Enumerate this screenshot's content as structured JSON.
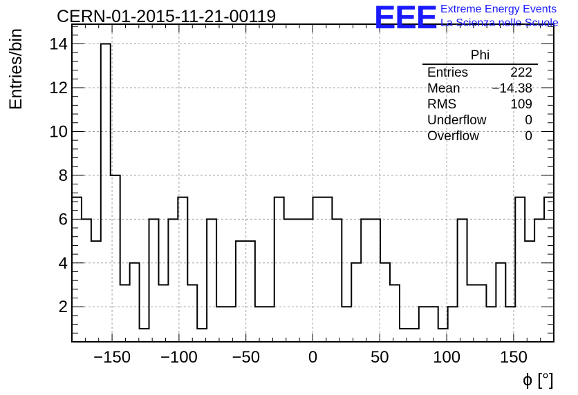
{
  "page": {
    "title": "CERN-01-2015-11-21-00119",
    "logo": {
      "mark": "EEE",
      "line1": "Extreme Energy Events",
      "line2": "La Scienza nelle Scuole"
    }
  },
  "stats": {
    "name": "Phi",
    "rows": [
      {
        "label": "Entries",
        "value": "222"
      },
      {
        "label": "Mean",
        "value": "−14.38"
      },
      {
        "label": "RMS",
        "value": "109"
      },
      {
        "label": "Underflow",
        "value": "0"
      },
      {
        "label": "Overflow",
        "value": "0"
      }
    ]
  },
  "chart_data": {
    "type": "bar",
    "style": "step-histogram",
    "title": "CERN-01-2015-11-21-00119",
    "xlabel": "ϕ [°]",
    "ylabel": "Entries/bin",
    "xlim": [
      -180,
      180
    ],
    "ylim": [
      0.4,
      14.9
    ],
    "bin_width": 7.2,
    "x_ticks": [
      -150,
      -100,
      -50,
      0,
      50,
      100,
      150
    ],
    "x_tick_labels": [
      "−150",
      "−100",
      "−50",
      "0",
      "50",
      "100",
      "150"
    ],
    "y_ticks": [
      2,
      4,
      6,
      8,
      10,
      12,
      14
    ],
    "y_tick_labels": [
      "2",
      "4",
      "6",
      "8",
      "10",
      "12",
      "14"
    ],
    "grid": true,
    "line_color": "#000000",
    "values": [
      7,
      6,
      5,
      14,
      8,
      3,
      4,
      1,
      6,
      3,
      6,
      7,
      3,
      1,
      6,
      2,
      2,
      5,
      5,
      2,
      2,
      7,
      6,
      6,
      6,
      7,
      7,
      6,
      2,
      4,
      6,
      6,
      4,
      3,
      1,
      1,
      2,
      2,
      1,
      2,
      6,
      3,
      3,
      2,
      4,
      2,
      7,
      5,
      6,
      7
    ]
  }
}
